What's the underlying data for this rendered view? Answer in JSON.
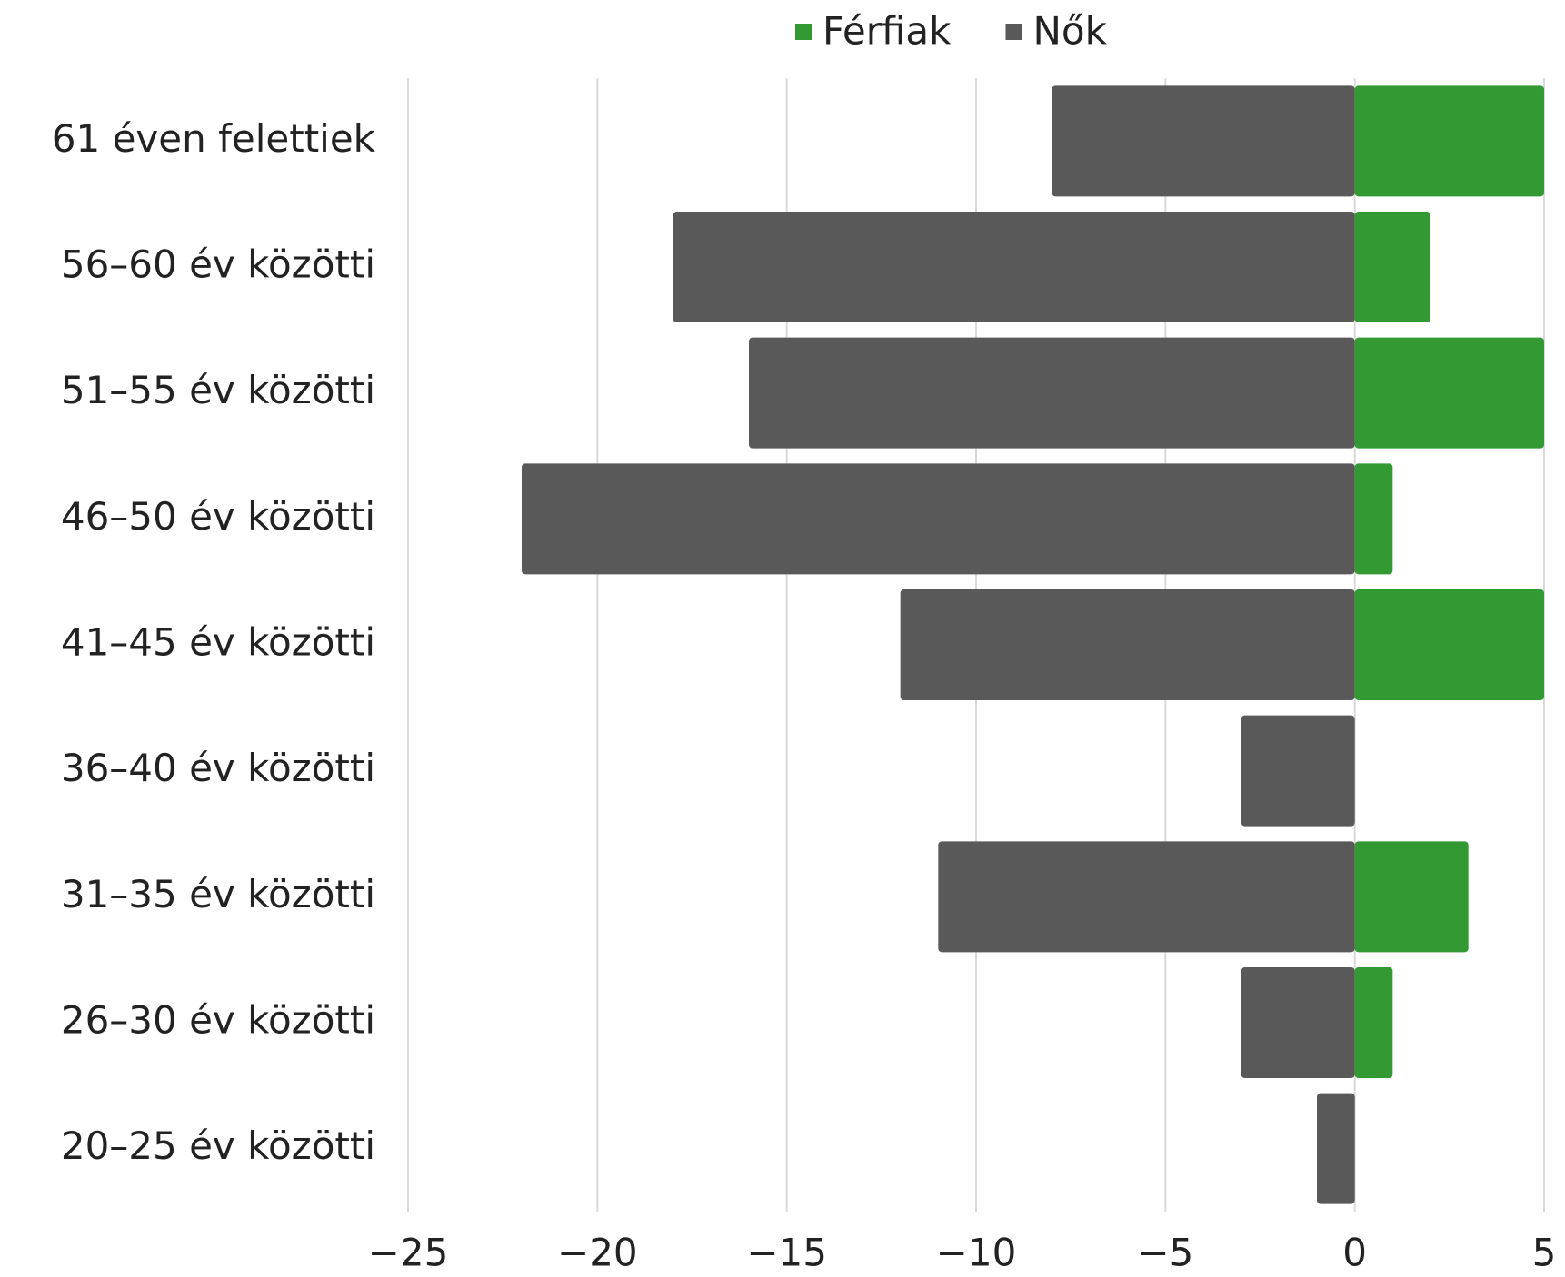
{
  "chart_data": {
    "type": "bar",
    "orientation": "horizontal",
    "categories": [
      "61 éven felettiek",
      "56–60 év közötti",
      "51–55 év közötti",
      "46–50 év közötti",
      "41–45 év közötti",
      "36–40 év közötti",
      "31–35 év közötti",
      "26–30 év közötti",
      "20–25 év közötti"
    ],
    "series": [
      {
        "name": "Férfiak",
        "color": "#339933",
        "values": [
          5,
          2,
          5,
          1,
          5,
          0,
          3,
          1,
          0
        ]
      },
      {
        "name": "Nők",
        "color": "#595959",
        "values": [
          -8,
          -18,
          -16,
          -22,
          -12,
          -3,
          -11,
          -3,
          -1
        ]
      }
    ],
    "xlim": [
      -25,
      5
    ],
    "xticks": [
      {
        "value": -25,
        "label": "−25"
      },
      {
        "value": -20,
        "label": "−20"
      },
      {
        "value": -15,
        "label": "−15"
      },
      {
        "value": -10,
        "label": "−10"
      },
      {
        "value": -5,
        "label": "−5"
      },
      0,
      5
    ],
    "grid": true,
    "legend": "top"
  }
}
